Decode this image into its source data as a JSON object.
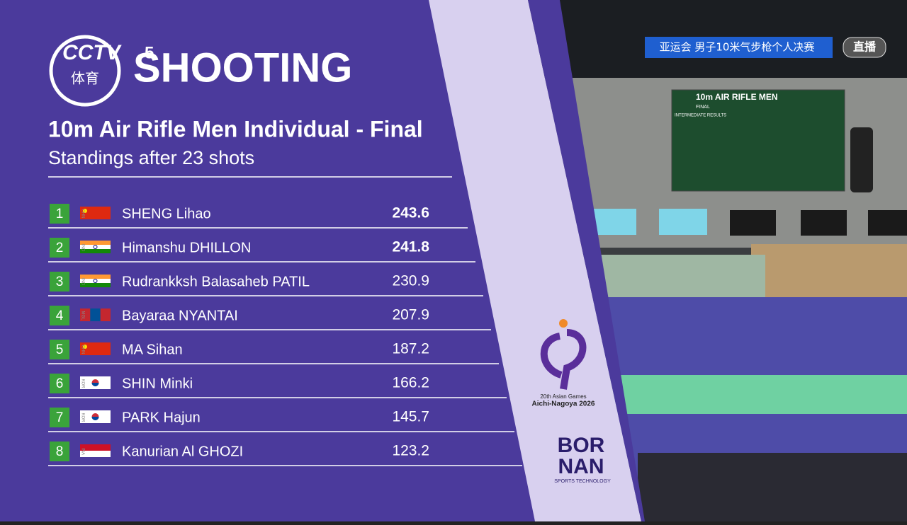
{
  "header": {
    "channel": "CCTV",
    "channel_number": "5",
    "channel_sub": "体育",
    "sport": "SHOOTING"
  },
  "title": "10m Air Rifle Men Individual - Final",
  "subtitle": "Standings after 23 shots",
  "standings": [
    {
      "rank": 1,
      "country": "CHN",
      "name": "SHENG Lihao",
      "score": "243.6"
    },
    {
      "rank": 2,
      "country": "IND",
      "name": "Himanshu DHILLON",
      "score": "241.8"
    },
    {
      "rank": 3,
      "country": "IND",
      "name": "Rudrankksh Balasaheb PATIL",
      "score": "230.9"
    },
    {
      "rank": 4,
      "country": "MGL",
      "name": "Bayaraa NYANTAI",
      "score": "207.9"
    },
    {
      "rank": 5,
      "country": "CHN",
      "name": "MA Sihan",
      "score": "187.2"
    },
    {
      "rank": 6,
      "country": "KOR",
      "name": "SHIN Minki",
      "score": "166.2"
    },
    {
      "rank": 7,
      "country": "KOR",
      "name": "PARK Hajun",
      "score": "145.7"
    },
    {
      "rank": 8,
      "country": "INA",
      "name": "Kanurian Al GHOZI",
      "score": "123.2"
    }
  ],
  "games_logo": {
    "line1": "20th Asian Games",
    "line2": "Aichi-Nagoya 2026"
  },
  "sponsor": {
    "line1": "BOR",
    "line2": "NAN",
    "tagline": "SPORTS TECHNOLOGY"
  },
  "broadcast_banner": "亚运会  男子10米气步枪个人决赛",
  "live_badge": "直播",
  "venue_board": {
    "title": "10m AIR RIFLE MEN",
    "phase": "FINAL",
    "label": "INTERMEDIATE RESULTS"
  }
}
